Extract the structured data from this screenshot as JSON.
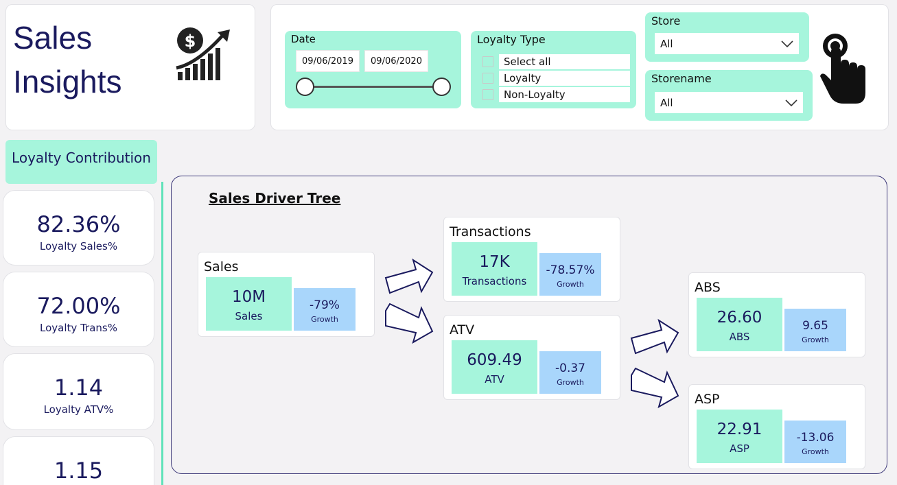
{
  "header": {
    "title_line1": "Sales",
    "title_line2": "Insights",
    "logo_icon": "dollar-growth-chart-icon"
  },
  "filters": {
    "date": {
      "title": "Date",
      "from": "09/06/2019",
      "to": "09/06/2020"
    },
    "loyalty_type": {
      "title": "Loyalty Type",
      "options": [
        "Select all",
        "Loyalty",
        "Non-Loyalty"
      ]
    },
    "store": {
      "title": "Store",
      "selected": "All"
    },
    "storename": {
      "title": "Storename",
      "selected": "All"
    },
    "hand_icon": "pointer-hand-icon"
  },
  "loyalty": {
    "header": "Loyalty Contribution",
    "kpis": [
      {
        "value": "82.36%",
        "label": "Loyalty Sales%"
      },
      {
        "value": "72.00%",
        "label": "Loyalty Trans%"
      },
      {
        "value": "1.14",
        "label": "Loyalty ATV%"
      },
      {
        "value": "1.15",
        "label": ""
      }
    ]
  },
  "tree": {
    "title": "Sales Driver Tree",
    "sales": {
      "title": "Sales",
      "value": "10M",
      "label": "Sales",
      "growth": "-79%",
      "growth_label": "Growth"
    },
    "transactions": {
      "title": "Transactions",
      "value": "17K",
      "label": "Transactions",
      "growth": "-78.57%",
      "growth_label": "Growth"
    },
    "atv": {
      "title": "ATV",
      "value": "609.49",
      "label": "ATV",
      "growth": "-0.37",
      "growth_label": "Growth"
    },
    "abs": {
      "title": "ABS",
      "value": "26.60",
      "label": "ABS",
      "growth": "9.65",
      "growth_label": "Growth"
    },
    "asp": {
      "title": "ASP",
      "value": "22.91",
      "label": "ASP",
      "growth": "-13.06",
      "growth_label": "Growth"
    }
  },
  "colors": {
    "accent_mint": "#a6f5dc",
    "growth_blue": "#a9d6fb",
    "navy_text": "#1a1a5e",
    "tree_border": "#3e3a7a"
  }
}
